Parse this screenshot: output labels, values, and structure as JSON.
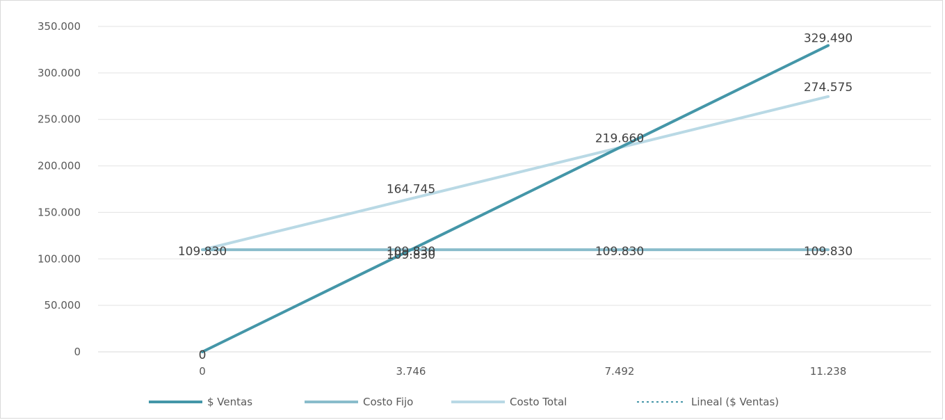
{
  "chart_data": {
    "type": "line",
    "title": "",
    "xlabel": "",
    "ylabel": "",
    "categories": [
      "0",
      "3.746",
      "7.492",
      "11.238"
    ],
    "x": [
      0,
      3746,
      7492,
      11238
    ],
    "ylim": [
      0,
      350000
    ],
    "yticks": [
      "0",
      "50.000",
      "100.000",
      "150.000",
      "200.000",
      "250.000",
      "300.000",
      "350.000"
    ],
    "ytick_values": [
      0,
      50000,
      100000,
      150000,
      200000,
      250000,
      300000,
      350000
    ],
    "grid": true,
    "legend_position": "bottom",
    "series": [
      {
        "name": "$ Ventas",
        "values": [
          0,
          109830,
          219660,
          329490
        ],
        "color": "#4496a8",
        "labels": [
          "0",
          "109.830",
          "219.660",
          "329.490"
        ],
        "label_index": [
          0,
          1,
          2,
          3
        ]
      },
      {
        "name": "Costo Fijo",
        "values": [
          109830,
          109830,
          109830,
          109830
        ],
        "color": "#89bccb",
        "labels": [
          "109.830",
          "109.830",
          "109.830",
          "109.830"
        ],
        "label_index": [
          0,
          1,
          2,
          3
        ]
      },
      {
        "name": "Costo Total",
        "values": [
          109830,
          164745,
          219660,
          274575
        ],
        "color": "#b9d9e5",
        "labels": [
          "164.745",
          "274.575"
        ],
        "label_index": [
          1,
          3
        ]
      },
      {
        "name": "Lineal ($ Ventas)",
        "values": [
          0,
          109830,
          219660,
          329490
        ],
        "color": "#4496a8",
        "style": "dotted",
        "labels": [],
        "label_index": []
      }
    ]
  }
}
